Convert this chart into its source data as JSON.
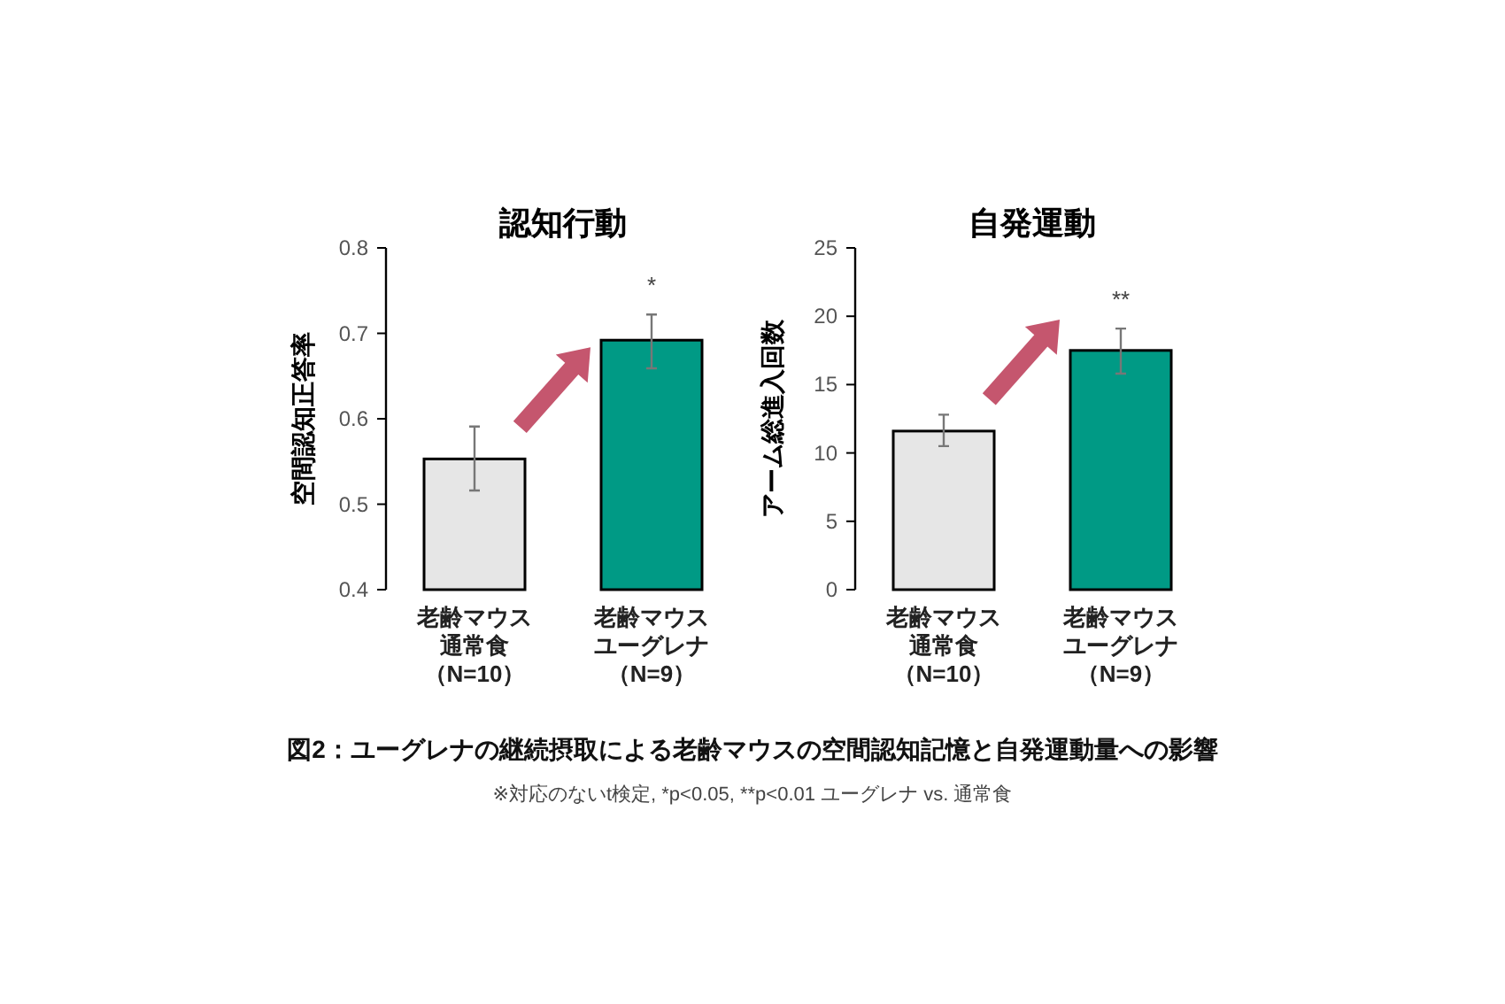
{
  "chart_data": [
    {
      "type": "bar",
      "title": "認知行動",
      "ylabel": "空間認知正答率",
      "categories": [
        "老齢マウス通常食（N=10）",
        "老齢マウスユーグレナ（N=9）"
      ],
      "values": [
        0.553,
        0.692
      ],
      "colors": [
        "#e6e6e6",
        "#009a85"
      ],
      "errors": [
        [
          0.516,
          0.591
        ],
        [
          0.659,
          0.722
        ]
      ],
      "ylim": [
        0.4,
        0.8
      ],
      "yticks": [
        0.4,
        0.5,
        0.6,
        0.7,
        0.8
      ],
      "annotations": [
        "*"
      ]
    },
    {
      "type": "bar",
      "title": "自発運動",
      "ylabel": "アーム総進入回数",
      "categories": [
        "老齢マウス通常食（N=10）",
        "老齢マウスユーグレナ（N=9）"
      ],
      "values": [
        11.6,
        17.5
      ],
      "colors": [
        "#e6e6e6",
        "#009a85"
      ],
      "errors": [
        [
          10.5,
          12.8
        ],
        [
          15.8,
          19.1
        ]
      ],
      "ylim": [
        0,
        25
      ],
      "yticks": [
        0,
        5,
        10,
        15,
        20,
        25
      ],
      "annotations": [
        "**",
        "図2：ユーグレナの継続摂取による老齢マウスの空間認知記憶と自発運動量への影響",
        "※対応のないt検定, *p<0.05, **p<0.01 ユーグレナ vs. 通常食"
      ]
    }
  ]
}
